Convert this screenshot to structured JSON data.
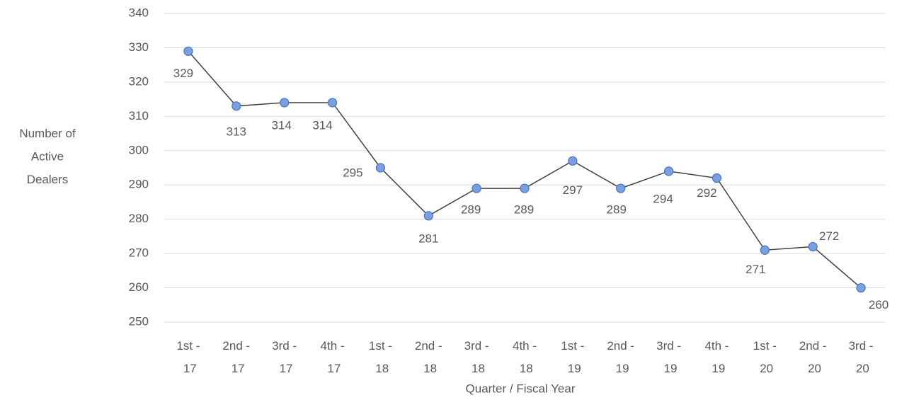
{
  "chart_data": {
    "type": "line",
    "x_label": "Quarter / Fiscal Year",
    "y_label": "Number of Active Dealers",
    "categories": [
      "1st - 17",
      "2nd - 17",
      "3rd - 17",
      "4th - 17",
      "1st - 18",
      "2nd - 18",
      "3rd - 18",
      "4th - 18",
      "1st - 19",
      "2nd - 19",
      "3rd - 19",
      "4th - 19",
      "1st - 20",
      "2nd - 20",
      "3rd - 20"
    ],
    "values": [
      329,
      313,
      314,
      314,
      295,
      281,
      289,
      289,
      297,
      289,
      294,
      292,
      271,
      272,
      260
    ],
    "color": "#404040",
    "marker_color": "#7ba0e0",
    "marker_edge": "#4472c4",
    "ylim": [
      250,
      340
    ],
    "yticks": [
      250,
      260,
      270,
      280,
      290,
      300,
      310,
      320,
      330,
      340
    ],
    "grid": true
  }
}
